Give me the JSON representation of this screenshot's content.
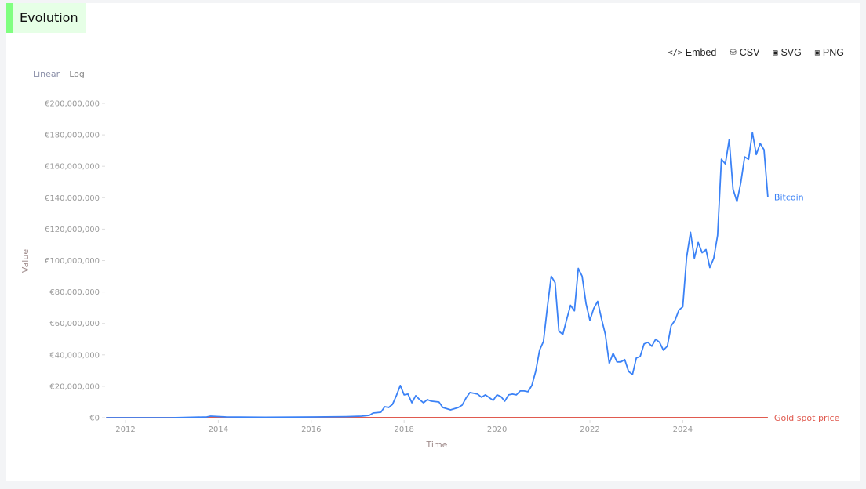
{
  "header": {
    "title": "Evolution"
  },
  "toolbar": {
    "items": [
      {
        "label": "Embed",
        "icon": "code-icon"
      },
      {
        "label": "CSV",
        "icon": "database-download-icon"
      },
      {
        "label": "SVG",
        "icon": "svg-file-icon"
      },
      {
        "label": "PNG",
        "icon": "png-file-icon"
      }
    ]
  },
  "scale_toggle": {
    "linear": "Linear",
    "log": "Log",
    "selected": "Linear"
  },
  "chart_data": {
    "type": "line",
    "xlabel": "Time",
    "ylabel": "Value",
    "x_ticks": [
      "2012",
      "2014",
      "2016",
      "2018",
      "2020",
      "2022",
      "2024"
    ],
    "y_ticks": [
      "€0",
      "€20,000,000",
      "€40,000,000",
      "€60,000,000",
      "€80,000,000",
      "€100,000,000",
      "€120,000,000",
      "€140,000,000",
      "€160,000,000",
      "€180,000,000",
      "€200,000,000"
    ],
    "ylim": [
      0,
      200000000
    ],
    "grid": false,
    "legend": "inline-end-labels",
    "series": [
      {
        "name": "Bitcoin",
        "color": "#3b82f6",
        "points": [
          [
            "2011-08",
            0
          ],
          [
            "2013-01",
            0
          ],
          [
            "2013-10",
            500000
          ],
          [
            "2013-11",
            1000000
          ],
          [
            "2014-03",
            500000
          ],
          [
            "2015-01",
            300000
          ],
          [
            "2016-02",
            500000
          ],
          [
            "2016-10",
            700000
          ],
          [
            "2017-02",
            1000000
          ],
          [
            "2017-04",
            1500000
          ],
          [
            "2017-05",
            3000000
          ],
          [
            "2017-07",
            3500000
          ],
          [
            "2017-08",
            7000000
          ],
          [
            "2017-09",
            6500000
          ],
          [
            "2017-10",
            8500000
          ],
          [
            "2017-11",
            14000000
          ],
          [
            "2017-12",
            20500000
          ],
          [
            "2018-01",
            14500000
          ],
          [
            "2018-02",
            15000000
          ],
          [
            "2018-03",
            9500000
          ],
          [
            "2018-04",
            14000000
          ],
          [
            "2018-05",
            11500000
          ],
          [
            "2018-06",
            9500000
          ],
          [
            "2018-07",
            11500000
          ],
          [
            "2018-08",
            10500000
          ],
          [
            "2018-10",
            10000000
          ],
          [
            "2018-11",
            6500000
          ],
          [
            "2019-01",
            5000000
          ],
          [
            "2019-03",
            6500000
          ],
          [
            "2019-04",
            8000000
          ],
          [
            "2019-05",
            12500000
          ],
          [
            "2019-06",
            16000000
          ],
          [
            "2019-08",
            15000000
          ],
          [
            "2019-09",
            13000000
          ],
          [
            "2019-10",
            14500000
          ],
          [
            "2019-12",
            11000000
          ],
          [
            "2020-01",
            14500000
          ],
          [
            "2020-02",
            13500000
          ],
          [
            "2020-03",
            10500000
          ],
          [
            "2020-04",
            14500000
          ],
          [
            "2020-05",
            15000000
          ],
          [
            "2020-06",
            14500000
          ],
          [
            "2020-07",
            17000000
          ],
          [
            "2020-08",
            17000000
          ],
          [
            "2020-09",
            16500000
          ],
          [
            "2020-10",
            20500000
          ],
          [
            "2020-11",
            29500000
          ],
          [
            "2020-12",
            43000000
          ],
          [
            "2021-01",
            48500000
          ],
          [
            "2021-02",
            70000000
          ],
          [
            "2021-03",
            90000000
          ],
          [
            "2021-04",
            86000000
          ],
          [
            "2021-05",
            55000000
          ],
          [
            "2021-06",
            53000000
          ],
          [
            "2021-07",
            62500000
          ],
          [
            "2021-08",
            71500000
          ],
          [
            "2021-09",
            68000000
          ],
          [
            "2021-10",
            95000000
          ],
          [
            "2021-11",
            90000000
          ],
          [
            "2021-12",
            72500000
          ],
          [
            "2022-01",
            62000000
          ],
          [
            "2022-02",
            69500000
          ],
          [
            "2022-03",
            74000000
          ],
          [
            "2022-04",
            63000000
          ],
          [
            "2022-05",
            53000000
          ],
          [
            "2022-06",
            34500000
          ],
          [
            "2022-07",
            41000000
          ],
          [
            "2022-08",
            35500000
          ],
          [
            "2022-09",
            35500000
          ],
          [
            "2022-10",
            37000000
          ],
          [
            "2022-11",
            29500000
          ],
          [
            "2022-12",
            27500000
          ],
          [
            "2023-01",
            38000000
          ],
          [
            "2023-02",
            39000000
          ],
          [
            "2023-03",
            47000000
          ],
          [
            "2023-04",
            48000000
          ],
          [
            "2023-05",
            45500000
          ],
          [
            "2023-06",
            50000000
          ],
          [
            "2023-07",
            48000000
          ],
          [
            "2023-08",
            43000000
          ],
          [
            "2023-09",
            45500000
          ],
          [
            "2023-10",
            58500000
          ],
          [
            "2023-11",
            62000000
          ],
          [
            "2023-12",
            68500000
          ],
          [
            "2024-01",
            70500000
          ],
          [
            "2024-02",
            102000000
          ],
          [
            "2024-03",
            118000000
          ],
          [
            "2024-04",
            101500000
          ],
          [
            "2024-05",
            111500000
          ],
          [
            "2024-06",
            105000000
          ],
          [
            "2024-07",
            107000000
          ],
          [
            "2024-08",
            95500000
          ],
          [
            "2024-09",
            101500000
          ],
          [
            "2024-10",
            116000000
          ],
          [
            "2024-11",
            164500000
          ],
          [
            "2024-12",
            161500000
          ],
          [
            "2025-01",
            177000000
          ],
          [
            "2025-02",
            145500000
          ],
          [
            "2025-03",
            137500000
          ],
          [
            "2025-04",
            149500000
          ],
          [
            "2025-05",
            166000000
          ],
          [
            "2025-06",
            164500000
          ],
          [
            "2025-07",
            181500000
          ],
          [
            "2025-08",
            167500000
          ],
          [
            "2025-09",
            174500000
          ],
          [
            "2025-10",
            170500000
          ],
          [
            "2025-11",
            140500000
          ]
        ]
      },
      {
        "name": "Gold spot price",
        "color": "#e05a4f",
        "points": [
          [
            "2011-08",
            0
          ],
          [
            "2025-11",
            0
          ]
        ]
      }
    ]
  }
}
